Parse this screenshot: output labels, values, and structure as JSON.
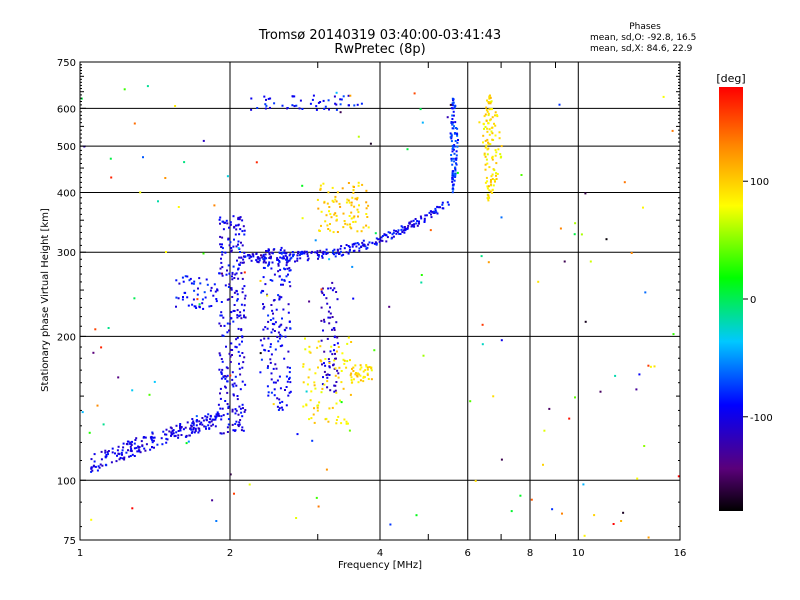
{
  "header": {
    "title_line1": "Tromsø 20140319 03:40:00-03:41:43",
    "title_line2": "RwPretec (8p)",
    "phases_title": "Phases",
    "phases_o": "mean, sd,O: -92.8, 16.5",
    "phases_x": "mean, sd,X:  84.6, 22.9"
  },
  "colorbar": {
    "unit_label": "[deg]",
    "tick_labels": [
      "100",
      "0",
      "-100"
    ],
    "tick_values": [
      100,
      0,
      -100
    ],
    "range": [
      -180,
      180
    ],
    "colors": [
      "#000000",
      "#5a007a",
      "#0000ff",
      "#00c8ff",
      "#00ff00",
      "#ffff00",
      "#ff8800",
      "#ff0000"
    ]
  },
  "chart_data": {
    "type": "scatter",
    "title": "Tromsø 20140319 03:40:00-03:41:43",
    "subtitle": "RwPretec (8p)",
    "xlabel": "Frequency [MHz]",
    "ylabel": "Stationary phase Virtual Height [km]",
    "x_scale": "log",
    "y_scale": "log",
    "xlim": [
      1,
      16
    ],
    "ylim": [
      75,
      750
    ],
    "x_ticks": [
      1,
      2,
      4,
      6,
      8,
      10,
      16
    ],
    "x_tick_labels": [
      "1",
      "2",
      "4",
      "6",
      "8",
      "10",
      "16"
    ],
    "y_ticks": [
      75,
      100,
      200,
      300,
      400,
      500,
      600,
      750
    ],
    "y_tick_labels": [
      "75",
      "100",
      "200",
      "300",
      "400",
      "500",
      "600",
      "750"
    ],
    "major_grid_x": [
      2,
      4,
      6,
      8,
      10
    ],
    "major_grid_y": [
      100,
      200,
      300,
      400,
      500,
      600
    ],
    "minor_x_ticks": [
      3,
      5,
      7,
      9
    ],
    "color_encoding": "phase [deg]",
    "clusters": [
      {
        "name": "low_band",
        "phase": -100,
        "f": [
          1.05,
          1.9
        ],
        "h": [
          108,
          135
        ],
        "n": 220
      },
      {
        "name": "f_trace",
        "phase": -95,
        "f": [
          2.1,
          5.5
        ],
        "h": [
          292,
          380
        ],
        "n": 260
      },
      {
        "name": "upper_o",
        "phase": -90,
        "f": [
          2.2,
          3.7
        ],
        "h": [
          595,
          640
        ],
        "n": 50
      },
      {
        "name": "column_2",
        "phase": -100,
        "f": [
          1.9,
          2.15
        ],
        "h": [
          125,
          360
        ],
        "n": 260
      },
      {
        "name": "column_2_5",
        "phase": -95,
        "f": [
          2.3,
          2.65
        ],
        "h": [
          140,
          310
        ],
        "n": 170
      },
      {
        "name": "column_3",
        "phase": -110,
        "f": [
          3.05,
          3.3
        ],
        "h": [
          150,
          260
        ],
        "n": 70
      },
      {
        "name": "cusp_5_6",
        "phase": -80,
        "f": [
          5.4,
          5.8
        ],
        "h": [
          400,
          640
        ],
        "n": 100
      },
      {
        "name": "x_trace_6",
        "phase": 90,
        "f": [
          6.0,
          7.2
        ],
        "h": [
          380,
          640
        ],
        "n": 120
      },
      {
        "name": "x_mid",
        "phase": 100,
        "f": [
          3.0,
          3.8
        ],
        "h": [
          330,
          420
        ],
        "n": 90
      },
      {
        "name": "x_low",
        "phase": 90,
        "f": [
          2.8,
          3.5
        ],
        "h": [
          130,
          200
        ],
        "n": 80
      },
      {
        "name": "x_low2",
        "phase": 95,
        "f": [
          3.5,
          3.9
        ],
        "h": [
          160,
          175
        ],
        "n": 40
      },
      {
        "name": "spur_1_5",
        "phase": -90,
        "f": [
          1.55,
          1.9
        ],
        "h": [
          228,
          268
        ],
        "n": 50
      },
      {
        "name": "scatter",
        "phase": 0,
        "f": [
          1.0,
          16.0
        ],
        "h": [
          75,
          700
        ],
        "n": 150
      }
    ]
  }
}
